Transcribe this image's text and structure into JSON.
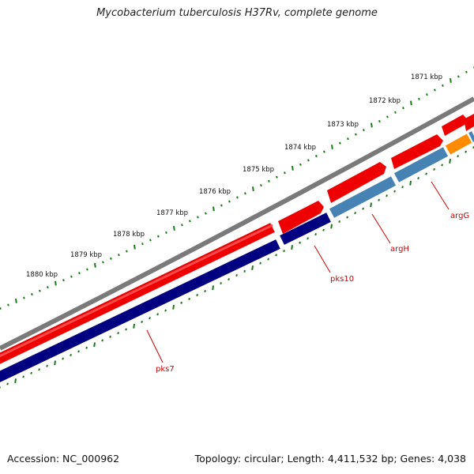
{
  "title": "Mycobacterium tuberculosis H37Rv, complete genome",
  "footer": {
    "accession": "Accession: NC_000962",
    "summary": "Topology: circular; Length: 4,411,532 bp; Genes: 4,038"
  },
  "colors": {
    "backbone": "#7a7a7a",
    "forward": "#ee0000",
    "reverse_dark": "#000080",
    "reverse_light": "#4682b4",
    "accent": "#ff8c00",
    "ticks": "#1a7a1a",
    "label": "#cc0000"
  },
  "scale": {
    "unit": "kbp",
    "labels": [
      "1871 kbp",
      "1872 kbp",
      "1873 kbp",
      "1874 kbp",
      "1875 kbp",
      "1876 kbp",
      "1877 kbp",
      "1878 kbp",
      "1879 kbp",
      "1880 kbp"
    ]
  },
  "genes": [
    {
      "name": "pks7"
    },
    {
      "name": "pks10"
    },
    {
      "name": "argH"
    },
    {
      "name": "argG"
    }
  ]
}
